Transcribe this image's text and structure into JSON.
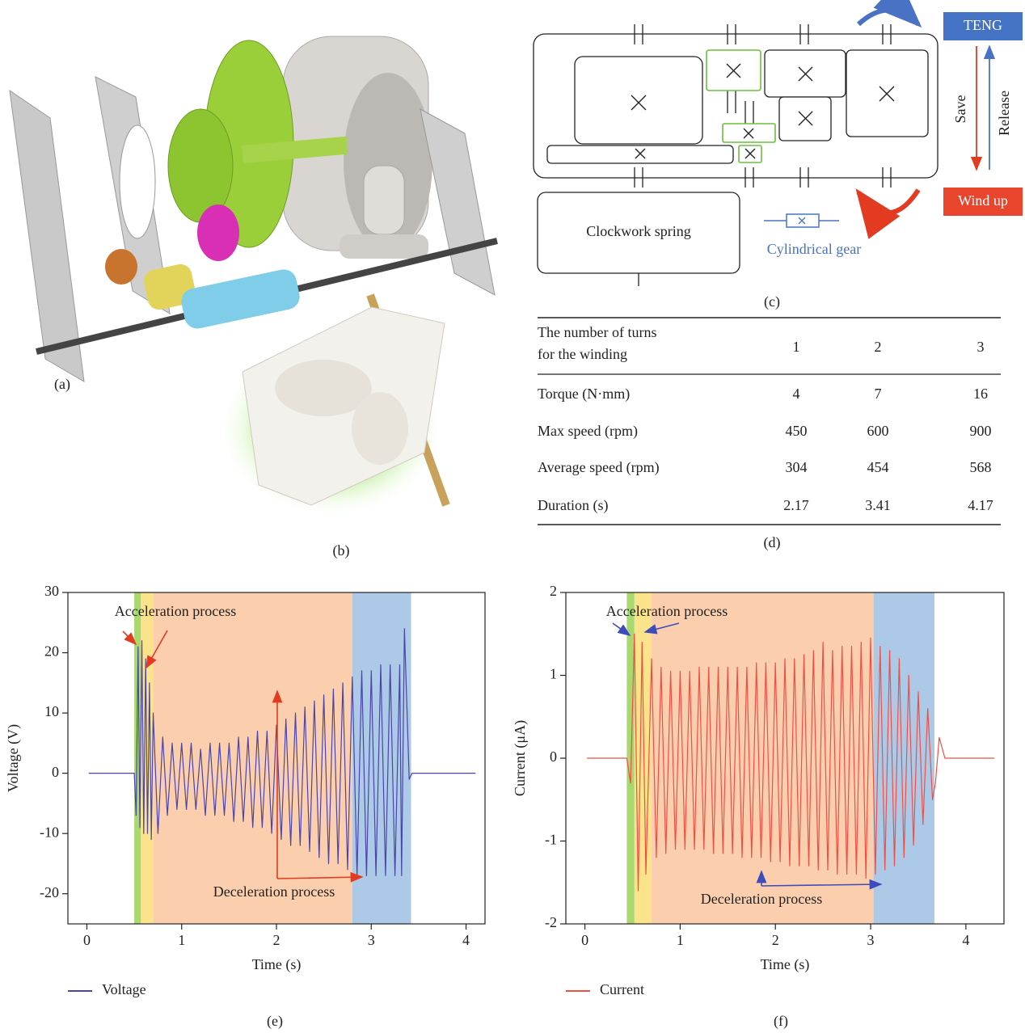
{
  "panels": {
    "a": "(a)",
    "b": "(b)",
    "c": "(c)",
    "d": "(d)"
  },
  "diagram": {
    "teng": "TENG",
    "wind_up": "Wind up",
    "save": "Save",
    "release": "Release",
    "clockwork_spring": "Clockwork spring",
    "cylindrical_gear": "Cylindrical gear"
  },
  "table": {
    "header": [
      [
        "The number of turns",
        "for the winding"
      ],
      "1",
      "2",
      "3"
    ],
    "rows": [
      [
        "Torque (N·mm)",
        "4",
        "7",
        "16"
      ],
      [
        "Max speed (rpm)",
        "450",
        "600",
        "900"
      ],
      [
        "Average speed (rpm)",
        "304",
        "454",
        "568"
      ],
      [
        "Duration (s)",
        "2.17",
        "3.41",
        "4.17"
      ]
    ]
  },
  "chart_data": [
    {
      "type": "line",
      "label": "(e)",
      "x_label": "Time (s)",
      "y_label": "Voltage (V)",
      "x": [
        0.02,
        0.5,
        0.52,
        0.54,
        0.56,
        0.58,
        0.6,
        0.62,
        0.64,
        0.66,
        0.68,
        0.7,
        0.75,
        0.8,
        0.85,
        0.9,
        0.95,
        1.0,
        1.05,
        1.1,
        1.15,
        1.2,
        1.25,
        1.3,
        1.35,
        1.4,
        1.45,
        1.5,
        1.55,
        1.6,
        1.65,
        1.7,
        1.75,
        1.8,
        1.85,
        1.9,
        1.95,
        2.0,
        2.05,
        2.1,
        2.15,
        2.2,
        2.25,
        2.3,
        2.35,
        2.4,
        2.45,
        2.5,
        2.55,
        2.6,
        2.65,
        2.7,
        2.75,
        2.8,
        2.85,
        2.9,
        2.95,
        3.0,
        3.05,
        3.1,
        3.15,
        3.2,
        3.25,
        3.3,
        3.32,
        3.35,
        3.4,
        3.43,
        4.1
      ],
      "series": [
        {
          "name": "Voltage",
          "color": "#4b45a8",
          "values": [
            0,
            0,
            -7,
            21,
            -9,
            22,
            -10,
            19,
            -10,
            15,
            -11,
            10,
            -10,
            6,
            -7,
            5,
            -6,
            5,
            -6,
            5,
            -6,
            4,
            -7,
            5,
            -7,
            5,
            -7,
            5,
            -8,
            6,
            -8,
            6,
            -9,
            7,
            -9,
            7,
            -10,
            8,
            -11,
            9,
            -12,
            10,
            -12,
            11,
            -13,
            12,
            -14,
            13,
            -15,
            14,
            -15,
            15,
            -16,
            16,
            -17,
            17,
            -17,
            17,
            -17,
            18,
            -17,
            18,
            -17,
            18,
            -17,
            24,
            -1,
            0,
            0
          ]
        }
      ],
      "bands": [
        {
          "x": [
            0.5,
            0.57
          ],
          "color": "#a9d86e"
        },
        {
          "x": [
            0.57,
            0.7
          ],
          "color": "#fbe38c"
        },
        {
          "x": [
            0.7,
            2.8
          ],
          "color": "#fbcfae"
        },
        {
          "x": [
            2.8,
            3.42
          ],
          "color": "#adc9e8"
        }
      ],
      "annotations": [
        "Acceleration process",
        "Deceleration process"
      ],
      "annotation_color": "#e23b22",
      "xlim": [
        -0.2,
        4.2
      ],
      "ylim": [
        -25,
        30
      ],
      "xticks": [
        0,
        1,
        2,
        3,
        4
      ],
      "yticks": [
        -20,
        -10,
        0,
        10,
        20,
        30
      ]
    },
    {
      "type": "line",
      "label": "(f)",
      "x_label": "Time (s)",
      "y_label": "Current (μA)",
      "x": [
        0.02,
        0.44,
        0.48,
        0.52,
        0.56,
        0.6,
        0.64,
        0.7,
        0.75,
        0.8,
        0.85,
        0.9,
        0.95,
        1.0,
        1.05,
        1.1,
        1.15,
        1.2,
        1.25,
        1.3,
        1.35,
        1.4,
        1.45,
        1.5,
        1.55,
        1.6,
        1.65,
        1.7,
        1.75,
        1.8,
        1.85,
        1.9,
        1.95,
        2.0,
        2.05,
        2.1,
        2.15,
        2.2,
        2.25,
        2.3,
        2.35,
        2.4,
        2.45,
        2.5,
        2.55,
        2.6,
        2.65,
        2.7,
        2.75,
        2.8,
        2.85,
        2.9,
        2.95,
        3.0,
        3.05,
        3.1,
        3.15,
        3.2,
        3.25,
        3.3,
        3.35,
        3.4,
        3.45,
        3.5,
        3.55,
        3.6,
        3.65,
        3.68,
        3.72,
        3.78,
        4.3
      ],
      "series": [
        {
          "name": "Current",
          "color": "#ef5046",
          "values": [
            0,
            0,
            -0.3,
            1.5,
            -1.6,
            1.4,
            -1.4,
            1.2,
            -1.2,
            1.1,
            -1.15,
            1.05,
            -1.1,
            1.05,
            -1.1,
            1.05,
            -1.1,
            1.1,
            -1.1,
            1.1,
            -1.15,
            1.1,
            -1.15,
            1.1,
            -1.15,
            1.1,
            -1.2,
            1.1,
            -1.2,
            1.15,
            -1.2,
            1.15,
            -1.25,
            1.15,
            -1.25,
            1.2,
            -1.3,
            1.2,
            -1.3,
            1.25,
            -1.3,
            1.3,
            -1.35,
            1.4,
            -1.35,
            1.3,
            -1.4,
            1.35,
            -1.4,
            1.35,
            -1.4,
            1.4,
            -1.45,
            1.45,
            -1.4,
            1.35,
            -1.35,
            1.3,
            -1.3,
            1.2,
            -1.2,
            1.0,
            -1.05,
            0.8,
            -0.8,
            0.6,
            -0.5,
            -0.3,
            0.25,
            0,
            0
          ]
        }
      ],
      "bands": [
        {
          "x": [
            0.44,
            0.52
          ],
          "color": "#a9d86e"
        },
        {
          "x": [
            0.52,
            0.7
          ],
          "color": "#fbe38c"
        },
        {
          "x": [
            0.7,
            3.03
          ],
          "color": "#fbcfae"
        },
        {
          "x": [
            3.03,
            3.67
          ],
          "color": "#adc9e8"
        }
      ],
      "annotations": [
        "Acceleration process",
        "Deceleration process"
      ],
      "annotation_color": "#3e4cbb",
      "xlim": [
        -0.2,
        4.4
      ],
      "ylim": [
        -2,
        2
      ],
      "xticks": [
        0,
        1,
        2,
        3,
        4
      ],
      "yticks": [
        -2,
        -1,
        0,
        1,
        2
      ]
    }
  ]
}
